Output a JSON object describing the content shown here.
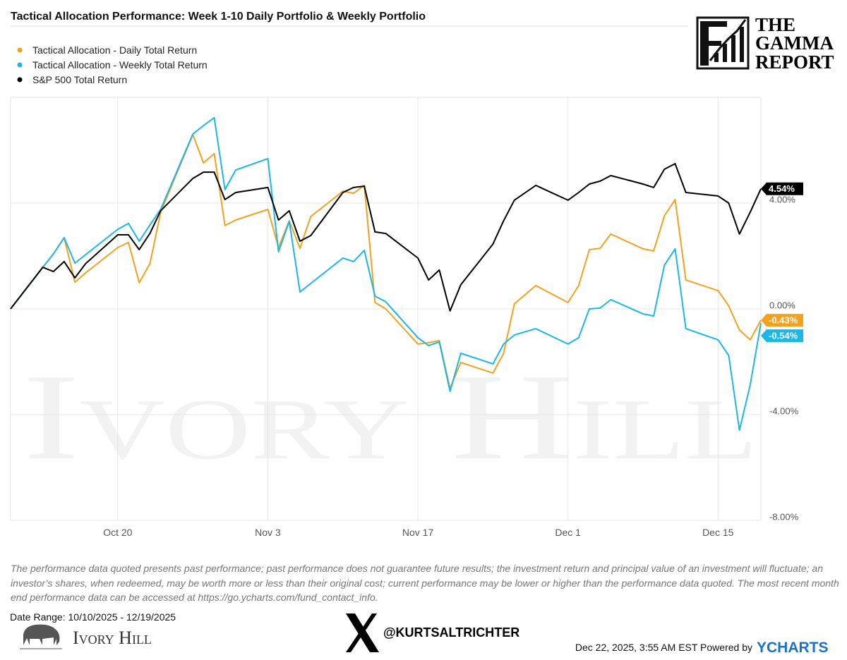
{
  "chart_data": {
    "type": "line",
    "title": "Tactical Allocation Performance: Week 1-10 Daily Portfolio & Weekly Portfolio",
    "x": [
      "2025-10-10",
      "2025-10-13",
      "2025-10-14",
      "2025-10-15",
      "2025-10-16",
      "2025-10-17",
      "2025-10-20",
      "2025-10-21",
      "2025-10-22",
      "2025-10-23",
      "2025-10-24",
      "2025-10-27",
      "2025-10-28",
      "2025-10-29",
      "2025-10-30",
      "2025-10-31",
      "2025-11-03",
      "2025-11-04",
      "2025-11-05",
      "2025-11-06",
      "2025-11-07",
      "2025-11-10",
      "2025-11-11",
      "2025-11-12",
      "2025-11-13",
      "2025-11-14",
      "2025-11-17",
      "2025-11-18",
      "2025-11-19",
      "2025-11-20",
      "2025-11-21",
      "2025-11-24",
      "2025-11-25",
      "2025-11-26",
      "2025-11-28",
      "2025-12-01",
      "2025-12-02",
      "2025-12-03",
      "2025-12-04",
      "2025-12-05",
      "2025-12-08",
      "2025-12-09",
      "2025-12-10",
      "2025-12-11",
      "2025-12-12",
      "2025-12-15",
      "2025-12-16",
      "2025-12-17",
      "2025-12-18",
      "2025-12-19"
    ],
    "series": [
      {
        "name": "Tactical Allocation - Daily Total Return",
        "color": "#f5a11c",
        "last_label": "-0.43%",
        "values": [
          0,
          1.57,
          2.08,
          2.69,
          1.01,
          1.36,
          2.32,
          2.51,
          0.99,
          1.71,
          3.65,
          6.59,
          5.52,
          5.87,
          3.15,
          3.36,
          3.76,
          2.32,
          3.33,
          2.29,
          3.49,
          4.45,
          4.37,
          4.67,
          0.24,
          0,
          -1.33,
          -1.28,
          -1.2,
          -3.01,
          -2.03,
          -2.43,
          -1.68,
          0.19,
          0.88,
          0.24,
          0.88,
          2.24,
          2.29,
          2.83,
          2.27,
          2.19,
          3.52,
          4.13,
          1.09,
          0.69,
          0.11,
          -0.8,
          -1.17,
          -0.43
        ]
      },
      {
        "name": "Tactical Allocation - Weekly Total Return",
        "color": "#1ab7ea",
        "last_label": "-0.54%",
        "values": [
          0,
          1.57,
          2.08,
          2.69,
          1.73,
          2.05,
          3.01,
          3.23,
          2.56,
          3.17,
          3.76,
          6.61,
          6.93,
          7.23,
          4.51,
          5.25,
          5.68,
          2.16,
          3.31,
          0.64,
          0.96,
          1.92,
          1.79,
          2.21,
          0.48,
          0.27,
          -1.09,
          -1.39,
          -1.25,
          -3.12,
          -1.68,
          -2.08,
          -1.33,
          -0.99,
          -0.75,
          -1.33,
          -1.09,
          0,
          0.03,
          0.35,
          -0.19,
          -0.27,
          1.65,
          2.27,
          -0.75,
          -1.17,
          -1.76,
          -4.59,
          -2.88,
          -0.54
        ]
      },
      {
        "name": "S&P 500 Total Return",
        "color": "#000000",
        "last_label": "4.54%",
        "values": [
          0,
          1.57,
          1.41,
          1.79,
          1.17,
          1.71,
          2.8,
          2.8,
          2.24,
          2.85,
          3.71,
          4.93,
          5.17,
          5.17,
          4.13,
          4.4,
          4.59,
          3.36,
          3.71,
          2.56,
          2.77,
          4.4,
          4.59,
          4.64,
          2.91,
          2.85,
          1.92,
          1.09,
          1.47,
          -0.08,
          0.91,
          2.45,
          3.33,
          4.11,
          4.67,
          4.11,
          4.4,
          4.72,
          4.83,
          5.04,
          4.72,
          4.59,
          5.28,
          5.49,
          4.4,
          4.27,
          4.0,
          2.83,
          3.65,
          4.54
        ]
      }
    ],
    "xlim": [
      "2025-10-10",
      "2025-12-19"
    ],
    "xticks": [
      {
        "value": "2025-10-20",
        "label": "Oct 20"
      },
      {
        "value": "2025-11-03",
        "label": "Nov 3"
      },
      {
        "value": "2025-11-17",
        "label": "Nov 17"
      },
      {
        "value": "2025-12-01",
        "label": "Dec 1"
      },
      {
        "value": "2025-12-15",
        "label": "Dec 15"
      }
    ],
    "ylim": [
      -8,
      8
    ],
    "yticks": [
      {
        "value": -8,
        "label": "-8.00%"
      },
      {
        "value": -4,
        "label": "-4.00%"
      },
      {
        "value": 0,
        "label": "0.00%"
      },
      {
        "value": 4,
        "label": "4.00%"
      }
    ],
    "grid": true,
    "legend": "top-left"
  },
  "footer": {
    "disclaimer": "The performance data quoted presents past performance; past performance does not guarantee future results; the investment return and principal value of an investment will fluctuate; an investor’s shares, when redeemed, may be worth more or less than their original cost; current performance may be lower or higher than the performance data quoted. The most recent month end performance data can be accessed at https://go.ycharts.com/fund_contact_info.",
    "date_range": "Date Range: 10/10/2025 - 12/19/2025",
    "handle": "@KURTSALTRICHTER",
    "timestamp": "Dec 22, 2025, 3:55 AM EST Powered by",
    "provider": "YCHARTS"
  },
  "branding": {
    "gamma": [
      "THE",
      "GAMMA",
      "REPORT"
    ],
    "ivory_hill": "Ivory Hill"
  }
}
